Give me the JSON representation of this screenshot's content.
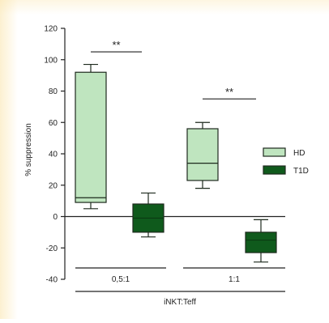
{
  "chart_data": {
    "type": "box",
    "ylabel": "% suppression",
    "xlabel": "iNKT:Teff",
    "ylim": [
      -40,
      120
    ],
    "yticks": [
      -40,
      -20,
      0,
      20,
      40,
      60,
      80,
      100,
      120
    ],
    "groups": [
      "0,5:1",
      "1:1"
    ],
    "series": [
      {
        "name": "HD",
        "color": "#bfe5bf"
      },
      {
        "name": "T1D",
        "color": "#0f5a1c"
      }
    ],
    "boxes": [
      {
        "group": "0,5:1",
        "series": "HD",
        "min": 5,
        "q1": 9,
        "median": 12,
        "q3": 92,
        "max": 97
      },
      {
        "group": "0,5:1",
        "series": "T1D",
        "min": -13,
        "q1": -10,
        "median": -1,
        "q3": 8,
        "max": 15
      },
      {
        "group": "1:1",
        "series": "HD",
        "min": 18,
        "q1": 23,
        "median": 34,
        "q3": 56,
        "max": 60
      },
      {
        "group": "1:1",
        "series": "T1D",
        "min": -29,
        "q1": -23,
        "median": -15,
        "q3": -10,
        "max": -2
      }
    ],
    "significance": [
      {
        "group": "0,5:1",
        "label": "**",
        "y": 105
      },
      {
        "group": "1:1",
        "label": "**",
        "y": 75
      }
    ],
    "reference_line": 0,
    "legend_position": "right"
  }
}
